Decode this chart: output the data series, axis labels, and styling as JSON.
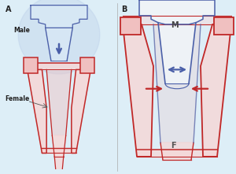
{
  "fig_width": 3.0,
  "fig_height": 2.21,
  "dpi": 100,
  "bg_color": "#ddeef7",
  "label_A": "A",
  "label_B": "B",
  "label_Male": "Male",
  "label_Female": "Female",
  "label_M": "M",
  "label_F": "F",
  "blue_dark": "#4a5fa8",
  "blue_mid": "#7090c0",
  "blue_light": "#b8cce8",
  "blue_fill": "#d8e8f5",
  "red_dark": "#c02828",
  "red_light": "#f0c0c0",
  "red_fill": "#f5d8d8",
  "white": "#ffffff",
  "near_white": "#f0f4f8"
}
